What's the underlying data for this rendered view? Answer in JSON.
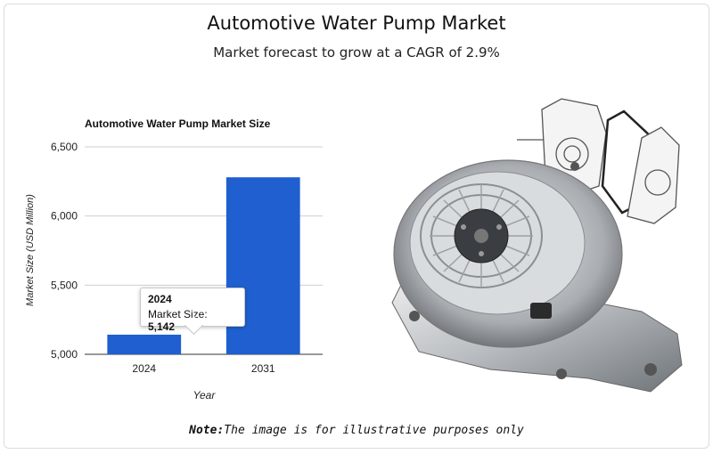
{
  "header": {
    "title": "Automotive Water Pump Market",
    "subtitle": "Market forecast to grow at a CAGR of 2.9%"
  },
  "chart_data": {
    "type": "bar",
    "title": "Automotive Water Pump Market Size",
    "xlabel": "Year",
    "ylabel": "Market Size (USD Million)",
    "categories": [
      "2024",
      "2031"
    ],
    "values": [
      5142,
      6280
    ],
    "ylim": [
      5000,
      6500
    ],
    "yticks": [
      "5,000",
      "5,500",
      "6,000",
      "6,500"
    ],
    "grid": true,
    "bar_color": "#1f5fd0"
  },
  "tooltip": {
    "title": "2024",
    "label": "Market Size: ",
    "value": "5,142"
  },
  "footer": {
    "note_label": "Note:",
    "note_text": "The image is for illustrative purposes only"
  },
  "image": {
    "icon": "water-pump-illustration"
  }
}
